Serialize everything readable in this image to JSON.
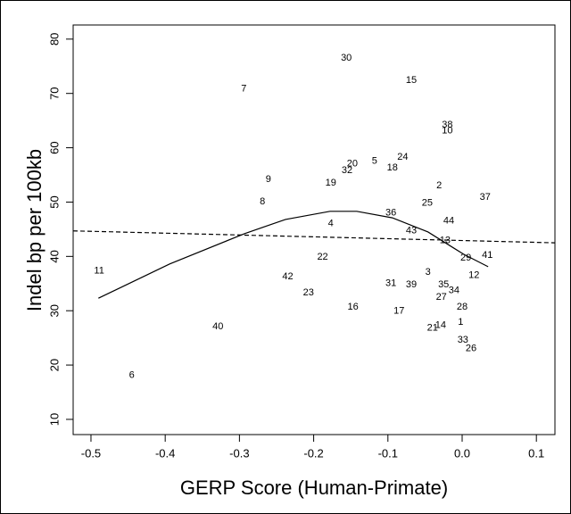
{
  "chart_data": {
    "type": "scatter",
    "x_label": "GERP Score (Human-Primate)",
    "y_label": "Indel bp per 100kb",
    "xlim": [
      -0.524,
      0.125
    ],
    "ylim": [
      7.2,
      82.6
    ],
    "xticks": [
      -0.5,
      -0.4,
      -0.3,
      -0.2,
      -0.1,
      {
        "value": 0,
        "label": "0.0"
      },
      0.1
    ],
    "yticks": [
      10,
      20,
      30,
      40,
      50,
      60,
      70,
      80
    ],
    "points": {
      "labels": [
        "30",
        "15",
        "7",
        "38",
        "10",
        "24",
        "5",
        "20",
        "18",
        "32",
        "9",
        "19",
        "2",
        "37",
        "8",
        "25",
        "36",
        "4",
        "44",
        "43",
        "13",
        "29",
        "41",
        "22",
        "11",
        "3",
        "12",
        "42",
        "31",
        "39",
        "35",
        "34",
        "23",
        "27",
        "28",
        "16",
        "17",
        "1",
        "14",
        "21",
        "40",
        "33",
        "26",
        "6"
      ],
      "x": [
        -0.156,
        -0.0685,
        -0.294,
        -0.02,
        -0.02,
        -0.08,
        -0.118,
        -0.148,
        -0.094,
        -0.155,
        -0.261,
        -0.177,
        -0.031,
        0.031,
        -0.269,
        -0.047,
        -0.096,
        -0.177,
        -0.018,
        -0.0685,
        -0.023,
        0.005,
        0.034,
        -0.188,
        -0.489,
        -0.046,
        0.016,
        -0.235,
        -0.096,
        -0.0685,
        -0.025,
        -0.011,
        -0.207,
        -0.028,
        0.0,
        -0.147,
        -0.085,
        -0.002,
        -0.029,
        -0.04,
        -0.329,
        0.001,
        0.012,
        -0.445
      ],
      "y": [
        76.5,
        72.4,
        70.8,
        64.2,
        63.1,
        58.3,
        57.5,
        57.0,
        56.3,
        55.8,
        54.2,
        53.5,
        53.0,
        50.9,
        50.1,
        49.8,
        48.0,
        46.0,
        46.5,
        44.7,
        42.9,
        39.7,
        40.2,
        39.9,
        37.3,
        37.1,
        36.5,
        36.3,
        35.0,
        34.8,
        34.8,
        33.7,
        33.3,
        32.5,
        30.7,
        30.7,
        29.9,
        27.9,
        27.3,
        26.8,
        27.1,
        24.6,
        23.0,
        18.1
      ]
    },
    "lines": [
      {
        "style": "solid",
        "x": [
          -0.49,
          -0.394,
          -0.293,
          -0.238,
          -0.178,
          -0.142,
          -0.094,
          -0.046,
          0.002,
          0.035
        ],
        "y": [
          32.3,
          38.6,
          44.2,
          46.8,
          48.3,
          48.3,
          47.1,
          44.5,
          40.4,
          38.1
        ]
      },
      {
        "style": "dashed",
        "x": [
          -0.524,
          0.125
        ],
        "y": [
          44.7,
          42.5
        ]
      }
    ]
  }
}
